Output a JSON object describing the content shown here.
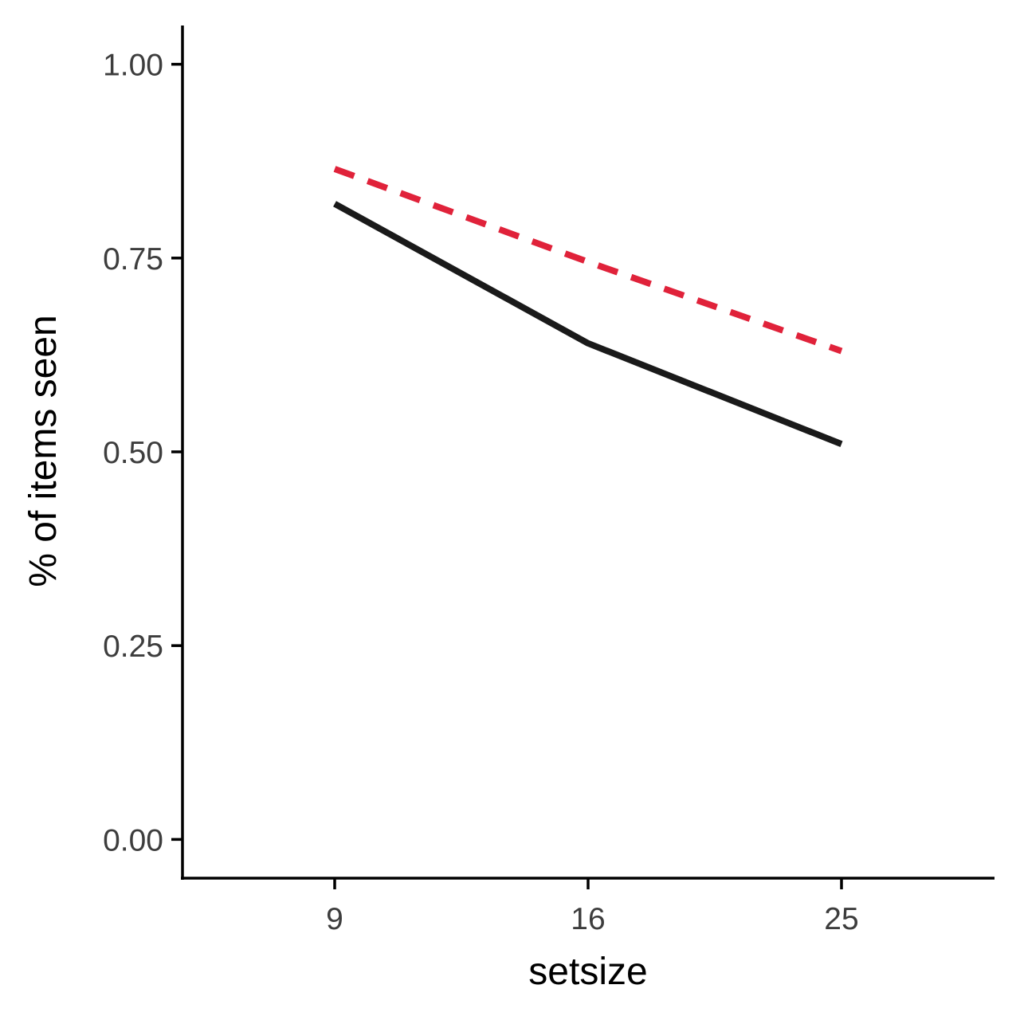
{
  "chart_data": {
    "type": "line",
    "title": "",
    "xlabel": "setsize",
    "ylabel": "% of items seen",
    "x_type": "categorical",
    "categories": [
      "9",
      "16",
      "25"
    ],
    "ylim": [
      -0.05,
      1.05
    ],
    "yticks": [
      0,
      0.25,
      0.5,
      0.75,
      1
    ],
    "ytick_labels": [
      "0.00",
      "0.25",
      "0.50",
      "0.75",
      "1.00"
    ],
    "grid": false,
    "legend": "none",
    "series": [
      {
        "values": [
          0.82,
          0.64,
          0.51
        ],
        "color": "#1a1a1a",
        "linestyle": "solid"
      },
      {
        "values": [
          0.865,
          0.745,
          0.63
        ],
        "color": "#e0223a",
        "linestyle": "dashed"
      }
    ]
  }
}
